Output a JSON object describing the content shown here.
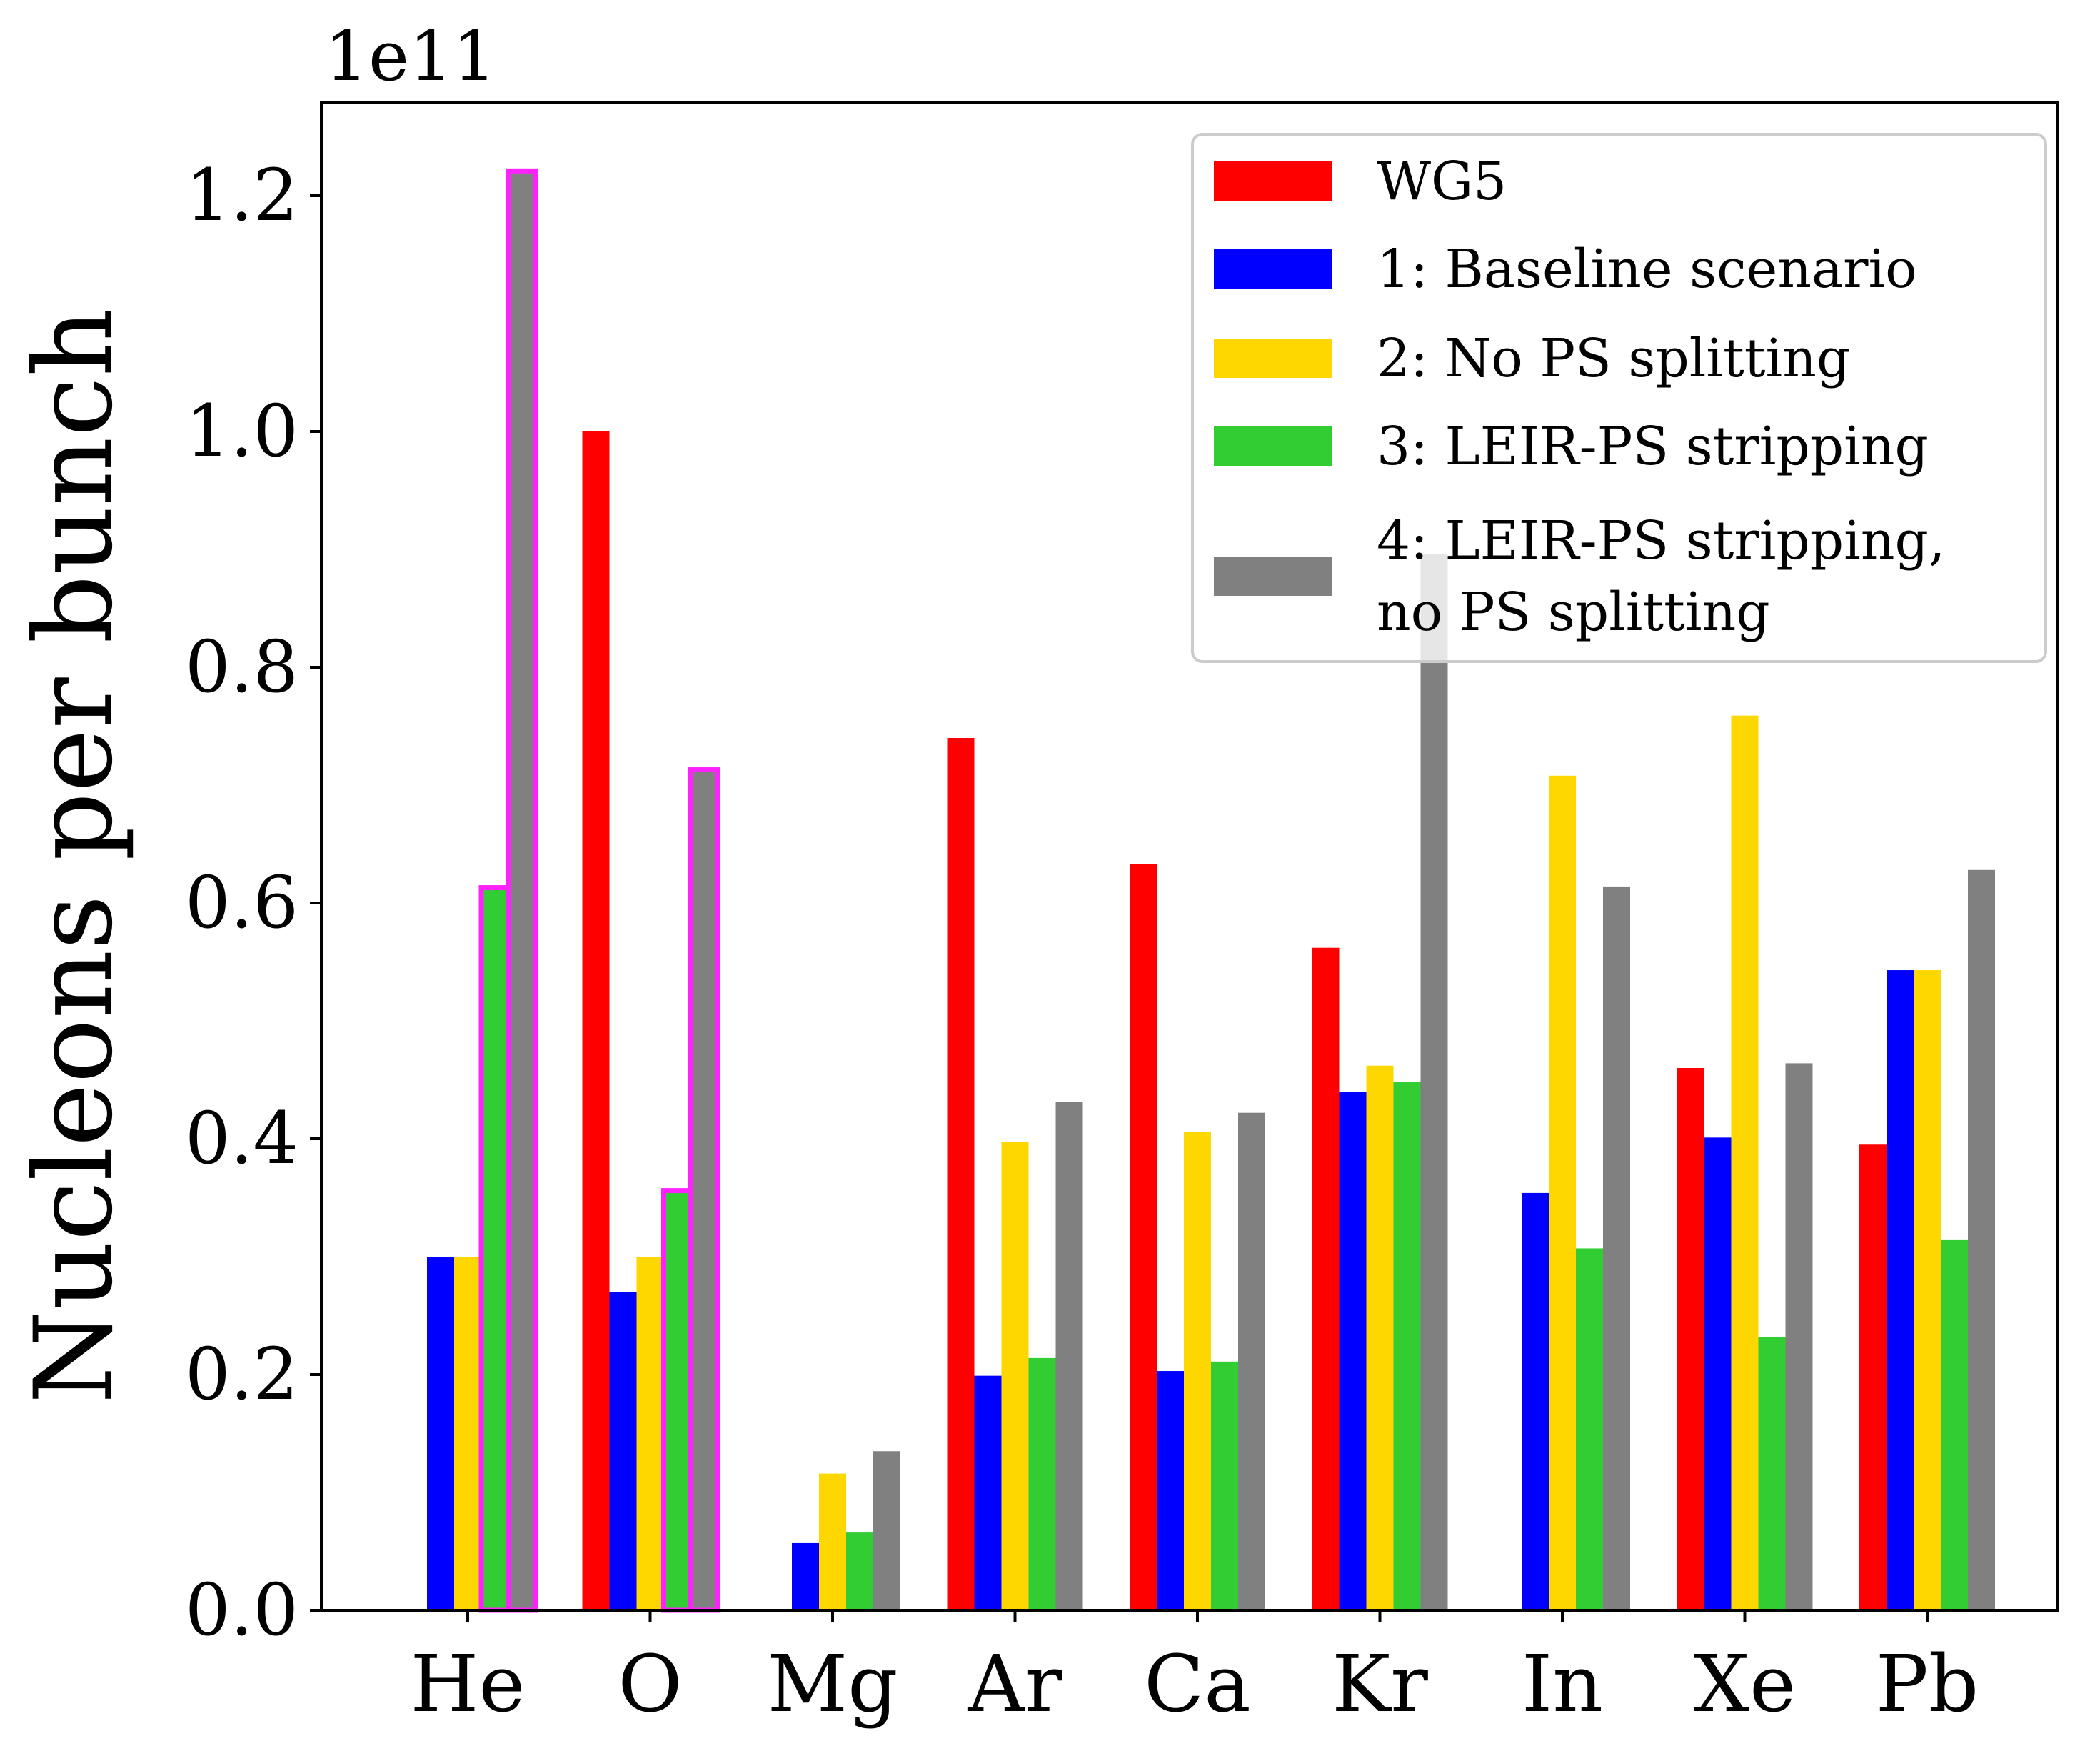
{
  "chart_data": {
    "type": "bar",
    "title": "",
    "xlabel": "",
    "ylabel": "Nucleons per bunch",
    "offset_label": "1e11",
    "categories": [
      "He",
      "O",
      "Mg",
      "Ar",
      "Ca",
      "Kr",
      "In",
      "Xe",
      "Pb"
    ],
    "yticks": [
      0.0,
      0.2,
      0.4,
      0.6,
      0.8,
      1.0,
      1.2
    ],
    "ytick_labels": [
      "0.0",
      "0.2",
      "0.4",
      "0.6",
      "0.8",
      "1.0",
      "1.2"
    ],
    "ylim": [
      0,
      1.28
    ],
    "grid": false,
    "legend_position": "top-right",
    "series": [
      {
        "name": "WG5",
        "color": "#ff0000",
        "values": [
          null,
          1.0,
          null,
          0.74,
          0.633,
          0.562,
          null,
          0.46,
          0.395
        ]
      },
      {
        "name": "1: Baseline scenario",
        "color": "#0000ff",
        "values": [
          0.3,
          0.27,
          0.057,
          0.199,
          0.203,
          0.44,
          0.354,
          0.401,
          0.543
        ]
      },
      {
        "name": "2: No PS splitting",
        "color": "#ffd700",
        "values": [
          0.3,
          0.3,
          0.116,
          0.397,
          0.406,
          0.462,
          0.708,
          0.759,
          0.543
        ]
      },
      {
        "name": "3: LEIR-PS stripping",
        "color": "#32cd32",
        "values": [
          0.613,
          0.356,
          0.066,
          0.214,
          0.211,
          0.448,
          0.307,
          0.232,
          0.314
        ]
      },
      {
        "name": "4: LEIR-PS stripping,\nno PS splitting",
        "color": "#808080",
        "values": [
          1.221,
          0.713,
          0.135,
          0.431,
          0.422,
          0.896,
          0.614,
          0.464,
          0.628
        ]
      }
    ],
    "highlight": {
      "color": "#ff22ff",
      "categories": [
        "He",
        "O"
      ],
      "series": [
        "3: LEIR-PS stripping",
        "4: LEIR-PS stripping,\nno PS splitting"
      ]
    }
  }
}
